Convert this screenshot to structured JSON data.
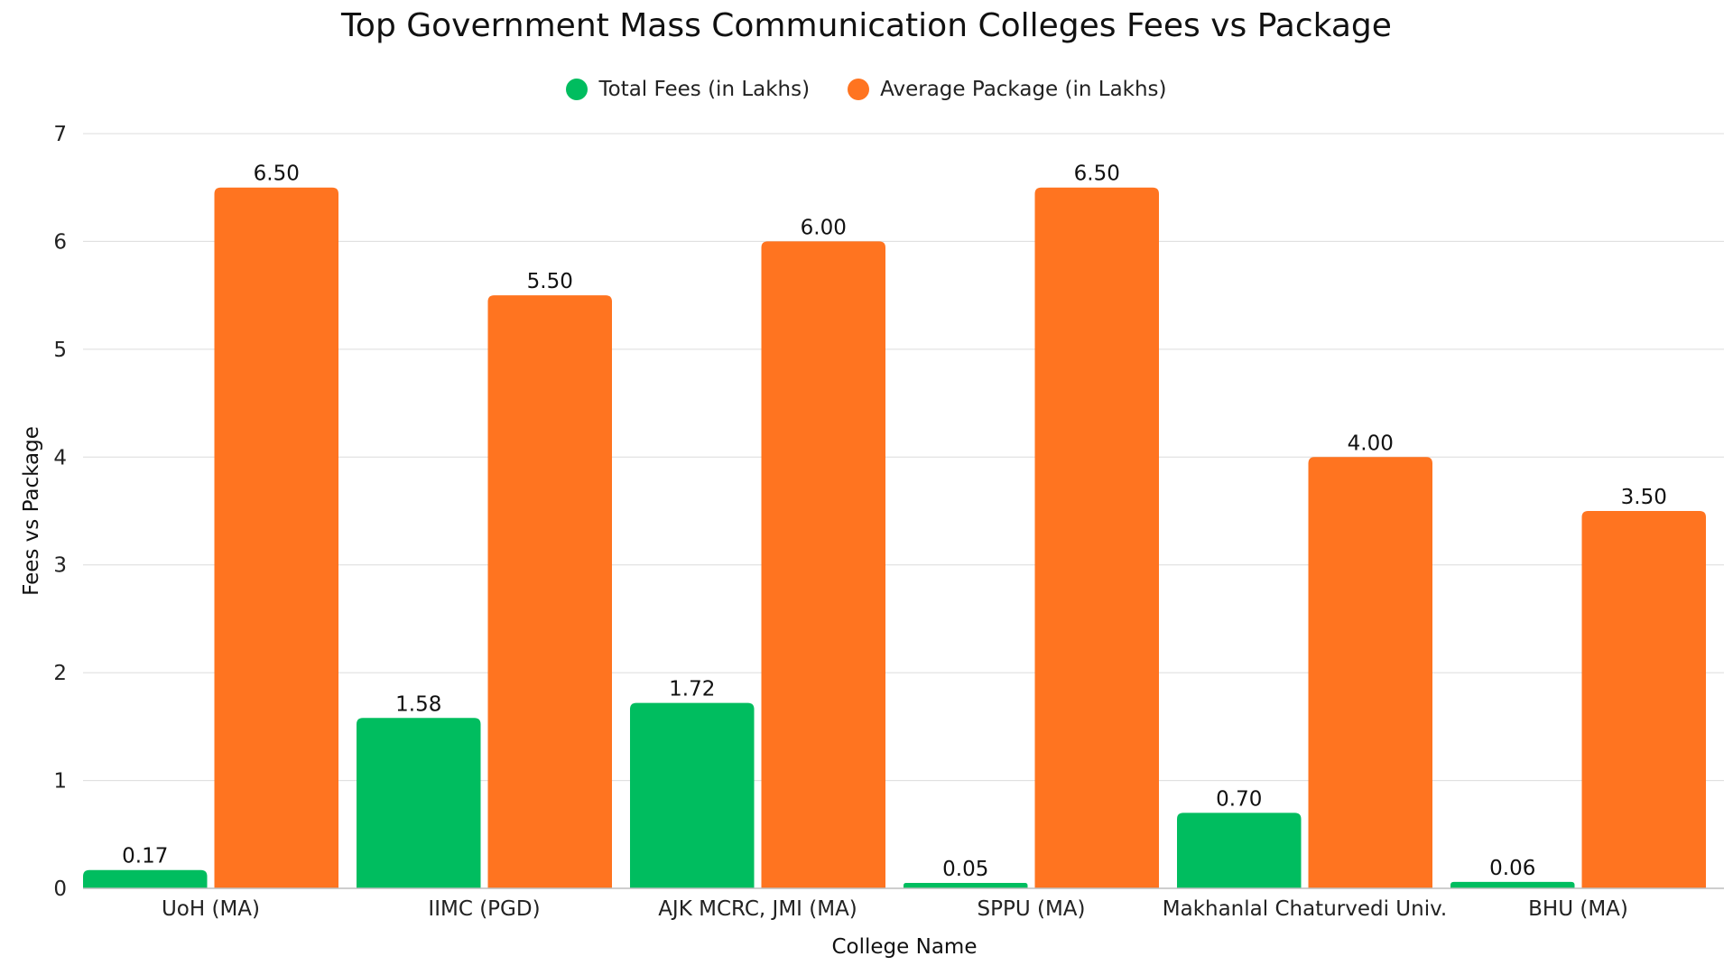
{
  "chart_data": {
    "type": "bar",
    "title": "Top Government Mass Communication Colleges Fees vs Package",
    "xlabel": "College Name",
    "ylabel": "Fees vs Package",
    "ylim": [
      0,
      7
    ],
    "yticks": [
      0,
      1,
      2,
      3,
      4,
      5,
      6,
      7
    ],
    "grid": true,
    "legend_position": "top-center",
    "categories": [
      "UoH (MA)",
      "IIMC (PGD)",
      "AJK MCRC, JMI (MA)",
      "SPPU (MA)",
      "Makhanlal Chaturvedi Univ.",
      "BHU (MA)"
    ],
    "series": [
      {
        "name": "Total Fees (in Lakhs)",
        "color": "#00BD5F",
        "values": [
          0.17,
          1.58,
          1.72,
          0.05,
          0.7,
          0.06
        ],
        "labels": [
          "0.17",
          "1.58",
          "1.72",
          "0.05",
          "0.70",
          "0.06"
        ]
      },
      {
        "name": "Average Package (in Lakhs)",
        "color": "#FF7420",
        "values": [
          6.5,
          5.5,
          6.0,
          6.5,
          4.0,
          3.5
        ],
        "labels": [
          "6.50",
          "5.50",
          "6.00",
          "6.50",
          "4.00",
          "3.50"
        ]
      }
    ]
  }
}
